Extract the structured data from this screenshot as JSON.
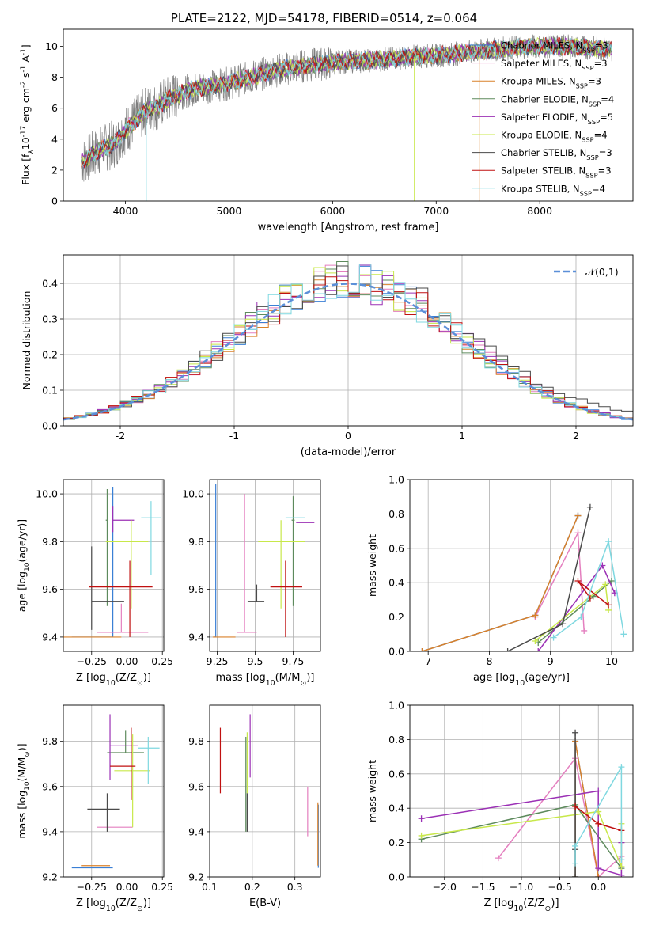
{
  "figure_title": "PLATE=2122, MJD=54178, FIBERID=0514, z=0.064",
  "legend_labels": [
    "Chabrier MILES, N$_{SSP}$=3",
    "Salpeter MILES, N$_{SSP}$=3",
    "Kroupa MILES, N$_{SSP}$=3",
    "Chabrier ELODIE, N$_{SSP}$=4",
    "Salpeter ELODIE, N$_{SSP}$=5",
    "Kroupa ELODIE, N$_{SSP}$=4",
    "Chabrier STELIB, N$_{SSP}$=3",
    "Salpeter STELIB, N$_{SSP}$=3",
    "Kroupa STELIB, N$_{SSP}$=4"
  ],
  "model_colors": [
    "#3a7fd5",
    "#e47fbf",
    "#d9812a",
    "#5d8a5c",
    "#9b30b5",
    "#c8e84a",
    "#4a4a4a",
    "#c01010",
    "#7fd8e0"
  ],
  "chart_data": [
    {
      "id": "spectrum",
      "type": "line",
      "title": "PLATE=2122, MJD=54178, FIBERID=0514, z=0.064",
      "xlabel": "wavelength [Angstrom, rest frame]",
      "ylabel": "Flux [f$_\\lambda$10$^{-17}$ erg cm$^{-2}$ s$^{-1}$ A$^{-1}$]",
      "xlim": [
        3400,
        8900
      ],
      "ylim": [
        0,
        11.1
      ],
      "xticks": [
        4000,
        5000,
        6000,
        7000,
        8000
      ],
      "yticks": [
        0,
        2,
        4,
        6,
        8,
        10
      ],
      "grid": false,
      "legend_position": "right",
      "continuum": [
        [
          3600,
          2.6
        ],
        [
          3750,
          3.3
        ],
        [
          3900,
          3.7
        ],
        [
          4000,
          4.6
        ],
        [
          4100,
          5.2
        ],
        [
          4200,
          5.9
        ],
        [
          4300,
          6.1
        ],
        [
          4500,
          6.9
        ],
        [
          4700,
          7.3
        ],
        [
          5000,
          7.6
        ],
        [
          5200,
          8.0
        ],
        [
          5500,
          8.5
        ],
        [
          5800,
          8.8
        ],
        [
          6100,
          9.0
        ],
        [
          6400,
          9.1
        ],
        [
          6700,
          9.3
        ],
        [
          7000,
          9.4
        ],
        [
          7300,
          9.6
        ],
        [
          7600,
          9.8
        ],
        [
          7900,
          10.0
        ],
        [
          8200,
          10.0
        ],
        [
          8500,
          9.9
        ],
        [
          8700,
          9.8
        ]
      ],
      "data_range": [
        3580,
        8700
      ]
    },
    {
      "id": "residuals",
      "type": "histogram",
      "xlabel": "(data-model)/error",
      "ylabel": "Normed distribution",
      "xlim": [
        -2.5,
        2.5
      ],
      "ylim": [
        0,
        0.48
      ],
      "xticks": [
        -2,
        -1,
        0,
        1,
        2
      ],
      "yticks": [
        0.0,
        0.1,
        0.2,
        0.3,
        0.4
      ],
      "grid": true,
      "legend": "$\\mathcal{N}(0,1)$",
      "legend_position": "top-right",
      "bins_edges_from": -2.5,
      "bin_width": 0.1
    },
    {
      "id": "age-vs-Z",
      "type": "scatter-errorbar",
      "xlabel": "Z [log$_{10}$($Z/Z_\\odot$)]",
      "ylabel": "age  [log$_{10}$($age/yr$)]",
      "xlim": [
        -0.45,
        0.26
      ],
      "ylim": [
        9.34,
        10.06
      ],
      "xticks": [
        -0.25,
        0.0,
        0.25
      ],
      "xticklabels": [
        "−0.25",
        "0.00",
        "0.25"
      ],
      "yticks": [
        9.4,
        9.6,
        9.8,
        10.0
      ],
      "grid": true,
      "points": [
        {
          "x": -0.1,
          "xerr": [
            0.29,
            0.0
          ],
          "y": 9.4,
          "yerr": [
            0.0,
            0.63
          ]
        },
        {
          "x": -0.04,
          "xerr": [
            0.17,
            0.19
          ],
          "y": 9.42,
          "yerr": [
            0.0,
            0.12
          ]
        },
        {
          "x": -0.12,
          "xerr": [
            0.33,
            0.08
          ],
          "y": 9.4,
          "yerr": [
            0.0,
            0.0
          ]
        },
        {
          "x": -0.14,
          "xerr": [
            0.01,
            0.0
          ],
          "y": 9.89,
          "yerr": [
            0.36,
            0.13
          ]
        },
        {
          "x": -0.1,
          "xerr": [
            0.0,
            0.15
          ],
          "y": 9.89,
          "yerr": [
            0.05,
            0.06
          ]
        },
        {
          "x": 0.03,
          "xerr": [
            0.18,
            0.12
          ],
          "y": 9.8,
          "yerr": [
            0.28,
            0.09
          ]
        },
        {
          "x": -0.25,
          "xerr": [
            0.0,
            0.23
          ],
          "y": 9.55,
          "yerr": [
            0.12,
            0.23
          ]
        },
        {
          "x": 0.02,
          "xerr": [
            0.29,
            0.16
          ],
          "y": 9.61,
          "yerr": [
            0.21,
            0.11
          ]
        },
        {
          "x": 0.17,
          "xerr": [
            0.07,
            0.07
          ],
          "y": 9.9,
          "yerr": [
            0.24,
            0.07
          ]
        }
      ]
    },
    {
      "id": "age-vs-mass",
      "type": "scatter-errorbar",
      "xlabel": "mass [log$_{10}$($M/M_\\odot$)]",
      "xlim": [
        9.2,
        9.93
      ],
      "ylim": [
        9.34,
        10.06
      ],
      "xticks": [
        9.25,
        9.5,
        9.75
      ],
      "yticks": [
        9.4,
        9.6,
        9.8,
        10.0
      ],
      "grid": true,
      "points": [
        {
          "x": 9.24,
          "xerr": [
            0.01,
            0.0
          ],
          "y": 9.4,
          "yerr": [
            0.0,
            0.64
          ]
        },
        {
          "x": 9.43,
          "xerr": [
            0.05,
            0.08
          ],
          "y": 9.42,
          "yerr": [
            0.0,
            0.58
          ]
        },
        {
          "x": 9.25,
          "xerr": [
            0.03,
            0.12
          ],
          "y": 9.4,
          "yerr": [
            0.0,
            0.0
          ]
        },
        {
          "x": 9.75,
          "xerr": [
            0.01,
            0.01
          ],
          "y": 9.89,
          "yerr": [
            0.36,
            0.1
          ]
        },
        {
          "x": 9.77,
          "xerr": [
            0.0,
            0.12
          ],
          "y": 9.88,
          "yerr": [
            0.0,
            0.0
          ]
        },
        {
          "x": 9.67,
          "xerr": [
            0.15,
            0.16
          ],
          "y": 9.8,
          "yerr": [
            0.28,
            0.09
          ]
        },
        {
          "x": 9.51,
          "xerr": [
            0.06,
            0.05
          ],
          "y": 9.55,
          "yerr": [
            0.0,
            0.07
          ]
        },
        {
          "x": 9.7,
          "xerr": [
            0.1,
            0.11
          ],
          "y": 9.61,
          "yerr": [
            0.21,
            0.11
          ]
        },
        {
          "x": 9.78,
          "xerr": [
            0.08,
            0.05
          ],
          "y": 9.9,
          "yerr": [
            0.0,
            0.0
          ]
        }
      ]
    },
    {
      "id": "weight-vs-age",
      "type": "line",
      "xlabel": "age  [log$_{10}$($age/yr$)]",
      "ylabel": "mass weight",
      "xlim": [
        6.7,
        10.35
      ],
      "ylim": [
        0,
        1.0
      ],
      "xticks": [
        7,
        8,
        9,
        10
      ],
      "yticks": [
        0.0,
        0.2,
        0.4,
        0.6,
        0.8,
        1.0
      ],
      "grid": true,
      "series": [
        {
          "x": [
            6.9,
            8.75,
            9.45
          ],
          "y": [
            0.0,
            0.21,
            0.79
          ]
        },
        {
          "x": [
            8.75,
            9.45,
            9.55
          ],
          "y": [
            0.2,
            0.69,
            0.12
          ]
        },
        {
          "x": [
            6.9,
            8.75,
            9.45
          ],
          "y": [
            0.0,
            0.21,
            0.79
          ]
        },
        {
          "x": [
            8.8,
            9.7,
            10.0
          ],
          "y": [
            0.05,
            0.32,
            0.41
          ]
        },
        {
          "x": [
            8.8,
            9.85,
            10.05
          ],
          "y": [
            0.0,
            0.5,
            0.34
          ]
        },
        {
          "x": [
            8.75,
            9.9,
            9.95
          ],
          "y": [
            0.06,
            0.39,
            0.24
          ]
        },
        {
          "x": [
            8.3,
            9.2,
            9.65
          ],
          "y": [
            0.0,
            0.16,
            0.84
          ]
        },
        {
          "x": [
            9.65,
            9.45,
            9.95
          ],
          "y": [
            0.31,
            0.41,
            0.27
          ]
        },
        {
          "x": [
            9.05,
            9.5,
            9.95,
            10.2
          ],
          "y": [
            0.08,
            0.2,
            0.64,
            0.1
          ]
        }
      ]
    },
    {
      "id": "mass-vs-Z",
      "type": "scatter-errorbar",
      "xlabel": "Z [log$_{10}$($Z/Z_\\odot$)]",
      "ylabel": "mass [log$_{10}$($M/M_\\odot$)]",
      "xlim": [
        -0.45,
        0.26
      ],
      "ylim": [
        9.2,
        9.96
      ],
      "xticks": [
        -0.25,
        0.0,
        0.25
      ],
      "xticklabels": [
        "−0.25",
        "0.00",
        "0.25"
      ],
      "yticks": [
        9.2,
        9.4,
        9.6,
        9.8
      ],
      "grid": true,
      "points": [
        {
          "x": -0.1,
          "xerr": [
            0.29,
            0.0
          ],
          "y": 9.24,
          "yerr": [
            0.0,
            0.0
          ]
        },
        {
          "x": -0.04,
          "xerr": [
            0.17,
            0.08
          ],
          "y": 9.42,
          "yerr": [
            0.0,
            0.0
          ]
        },
        {
          "x": -0.12,
          "xerr": [
            0.2,
            0.0
          ],
          "y": 9.25,
          "yerr": [
            0.0,
            0.0
          ]
        },
        {
          "x": -0.01,
          "xerr": [
            0.13,
            0.13
          ],
          "y": 9.75,
          "yerr": [
            0.0,
            0.1
          ]
        },
        {
          "x": -0.12,
          "xerr": [
            0.0,
            0.2
          ],
          "y": 9.78,
          "yerr": [
            0.15,
            0.14
          ]
        },
        {
          "x": 0.04,
          "xerr": [
            0.13,
            0.12
          ],
          "y": 9.67,
          "yerr": [
            0.25,
            0.16
          ]
        },
        {
          "x": -0.14,
          "xerr": [
            0.14,
            0.09
          ],
          "y": 9.5,
          "yerr": [
            0.1,
            0.07
          ]
        },
        {
          "x": 0.03,
          "xerr": [
            0.15,
            0.03
          ],
          "y": 9.69,
          "yerr": [
            0.15,
            0.17
          ]
        },
        {
          "x": 0.15,
          "xerr": [
            0.07,
            0.08
          ],
          "y": 9.77,
          "yerr": [
            0.16,
            0.05
          ]
        }
      ]
    },
    {
      "id": "mass-vs-EBV",
      "type": "scatter-errorbar",
      "xlabel": "E(B-V)",
      "xlim": [
        0.1,
        0.36
      ],
      "ylim": [
        9.2,
        9.96
      ],
      "xticks": [
        0.1,
        0.2,
        0.3
      ],
      "yticks": [
        9.2,
        9.4,
        9.6,
        9.8
      ],
      "grid": true,
      "points": [
        {
          "x": 0.355,
          "y": 9.24,
          "yerr": [
            0.0,
            0.28
          ]
        },
        {
          "x": 0.33,
          "y": 9.42,
          "yerr": [
            0.04,
            0.18
          ]
        },
        {
          "x": 0.354,
          "y": 9.25,
          "yerr": [
            0.0,
            0.28
          ]
        },
        {
          "x": 0.185,
          "y": 9.75,
          "yerr": [
            0.35,
            0.07
          ]
        },
        {
          "x": 0.195,
          "y": 9.78,
          "yerr": [
            0.14,
            0.14
          ]
        },
        {
          "x": 0.188,
          "y": 9.67,
          "yerr": [
            0.1,
            0.17
          ]
        },
        {
          "x": 0.188,
          "y": 9.5,
          "yerr": [
            0.1,
            0.07
          ]
        },
        {
          "x": 0.125,
          "y": 9.69,
          "yerr": [
            0.12,
            0.17
          ]
        },
        {
          "x": 0.35,
          "y": 9.77,
          "yerr": [
            0.0,
            0.0
          ]
        }
      ]
    },
    {
      "id": "weight-vs-Z",
      "type": "line",
      "xlabel": "Z [log$_{10}$($Z/Z_\\odot$)]",
      "ylabel": "mass weight",
      "xlim": [
        -2.45,
        0.45
      ],
      "ylim": [
        0,
        1.0
      ],
      "xticks": [
        -2.0,
        -1.5,
        -1.0,
        -0.5,
        0.0
      ],
      "xticklabels": [
        "−2.0",
        "−1.5",
        "−1.0",
        "−0.5",
        "0.0"
      ],
      "yticks": [
        0.0,
        0.2,
        0.4,
        0.6,
        0.8,
        1.0
      ],
      "grid": true,
      "series": [
        {
          "x": [
            -0.3,
            -0.3,
            0.0
          ],
          "y": [
            0.0,
            0.79,
            0.0
          ]
        },
        {
          "x": [
            -1.3,
            -0.3,
            0.0,
            0.3
          ],
          "y": [
            0.11,
            0.69,
            0.0,
            0.12
          ]
        },
        {
          "x": [
            -0.3,
            -0.3,
            0.0
          ],
          "y": [
            0.0,
            0.79,
            0.0
          ]
        },
        {
          "x": [
            -2.3,
            -0.3,
            0.3
          ],
          "y": [
            0.22,
            0.42,
            0.05
          ]
        },
        {
          "x": [
            -2.3,
            0.0,
            0.0,
            0.3,
            0.3
          ],
          "y": [
            0.34,
            0.5,
            0.05,
            0.01,
            0.2
          ]
        },
        {
          "x": [
            -2.3,
            0.0,
            0.3,
            0.3
          ],
          "y": [
            0.24,
            0.38,
            0.06,
            0.31
          ]
        },
        {
          "x": [
            -0.3,
            -0.3,
            -0.3
          ],
          "y": [
            0.0,
            0.16,
            0.84
          ]
        },
        {
          "x": [
            -0.3,
            0.0,
            0.3
          ],
          "y": [
            0.41,
            0.31,
            0.27
          ]
        },
        {
          "x": [
            -0.3,
            -0.3,
            0.3,
            0.3
          ],
          "y": [
            0.08,
            0.18,
            0.64,
            0.1
          ]
        }
      ]
    }
  ]
}
